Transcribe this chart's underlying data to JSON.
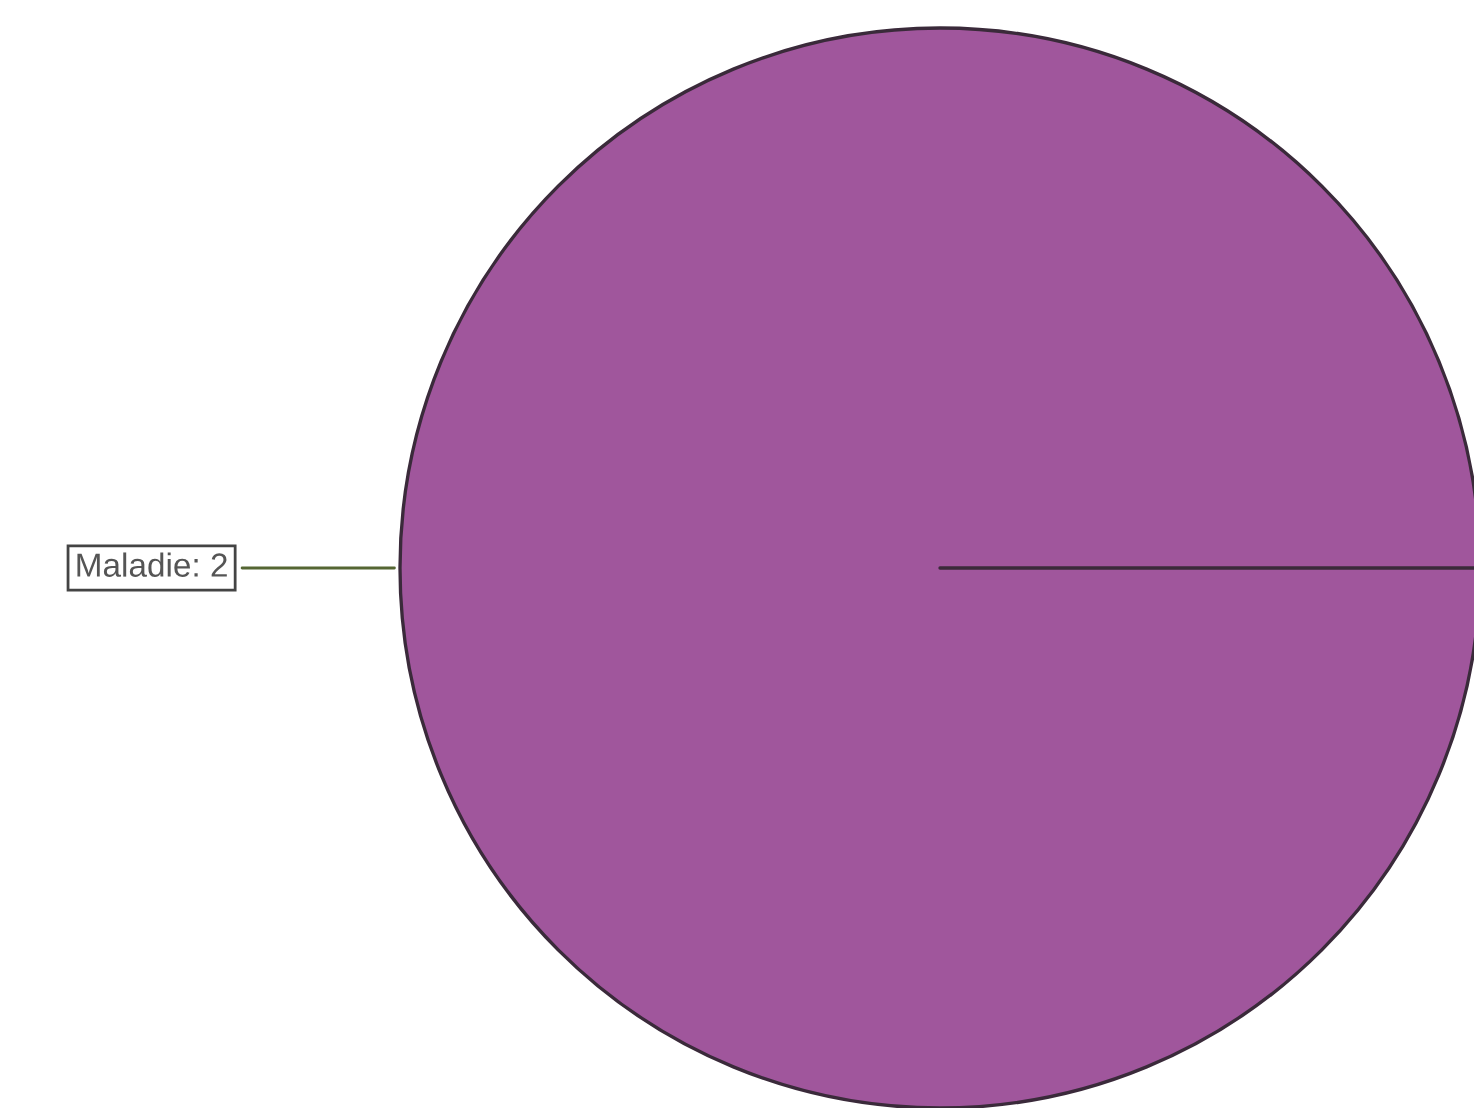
{
  "chart_data": {
    "type": "pie",
    "categories": [
      "Maladie: 2"
    ],
    "values": [
      100
    ],
    "colors": [
      "#a0569c"
    ]
  }
}
